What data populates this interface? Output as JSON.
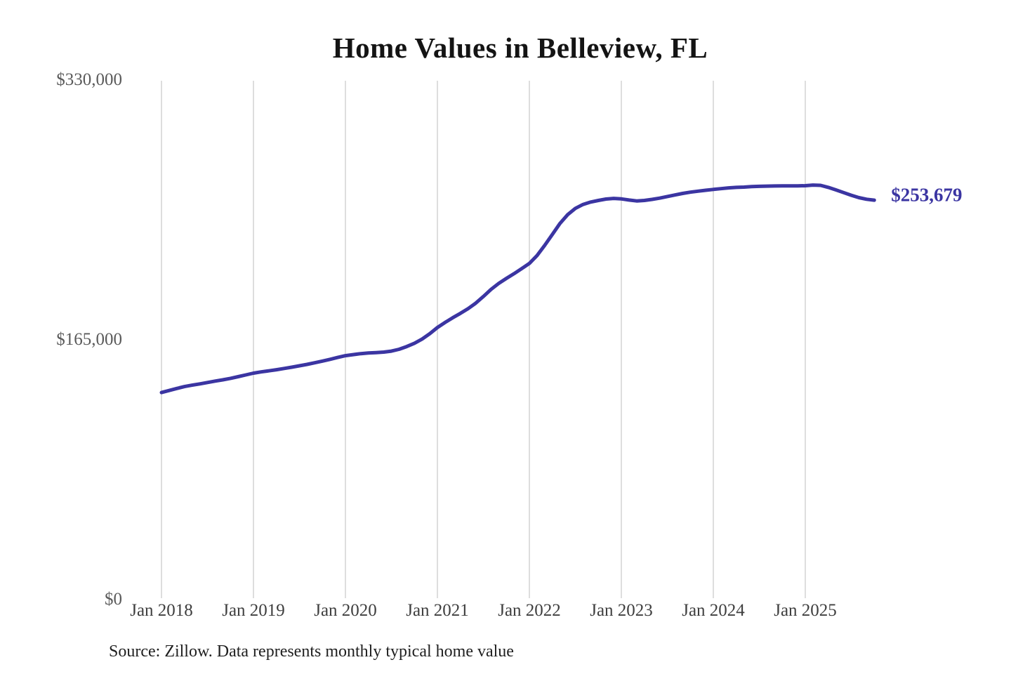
{
  "colors": {
    "background": "#ffffff",
    "line": "#3b35a2",
    "grid": "#cbcbcb",
    "title_text": "#141414",
    "y_tick_text": "#5a5a5a",
    "x_tick_text": "#3e3e3e",
    "source_text": "#1f1f1f",
    "end_label_text": "#3b35a2"
  },
  "chart_data": {
    "type": "line",
    "title": "Home Values in Belleview, FL",
    "source_note": "Source: Zillow. Data represents monthly typical home value",
    "xlabel": "",
    "ylabel": "",
    "ylim": [
      0,
      330000
    ],
    "grid": "vertical-only",
    "legend": "none",
    "end_label": "$253,679",
    "x_tick_labels": [
      "Jan 2018",
      "Jan 2019",
      "Jan 2020",
      "Jan 2021",
      "Jan 2022",
      "Jan 2023",
      "Jan 2024",
      "Jan 2025"
    ],
    "x_tick_month_indices": [
      0,
      12,
      24,
      36,
      48,
      60,
      72,
      84
    ],
    "y_ticks": [
      {
        "value": 0,
        "label": "$0"
      },
      {
        "value": 165000,
        "label": "$165,000"
      },
      {
        "value": 330000,
        "label": "$330,000"
      }
    ],
    "series": [
      {
        "name": "Monthly typical home value",
        "frequency": "monthly",
        "x_start": "2018-01",
        "x_end": "2025-10",
        "final_value": 253679,
        "values": [
          131500,
          132800,
          134100,
          135300,
          136200,
          137000,
          137900,
          138800,
          139600,
          140500,
          141600,
          142700,
          143800,
          144600,
          145300,
          146000,
          146800,
          147600,
          148500,
          149400,
          150400,
          151500,
          152600,
          153800,
          154900,
          155600,
          156200,
          156600,
          156900,
          157200,
          157800,
          159000,
          160700,
          162800,
          165500,
          168900,
          172800,
          176000,
          179000,
          181800,
          184800,
          188300,
          192500,
          197000,
          200800,
          204000,
          207000,
          210200,
          213500,
          218500,
          225000,
          232000,
          239000,
          244500,
          248500,
          251000,
          252500,
          253500,
          254400,
          254800,
          254500,
          253800,
          253200,
          253500,
          254200,
          255000,
          256000,
          257000,
          258000,
          258800,
          259400,
          260000,
          260500,
          261000,
          261500,
          261800,
          262000,
          262300,
          262500,
          262600,
          262700,
          262800,
          262800,
          262800,
          262900,
          263300,
          263100,
          261800,
          260200,
          258500,
          256800,
          255300,
          254300,
          253679
        ]
      }
    ]
  }
}
